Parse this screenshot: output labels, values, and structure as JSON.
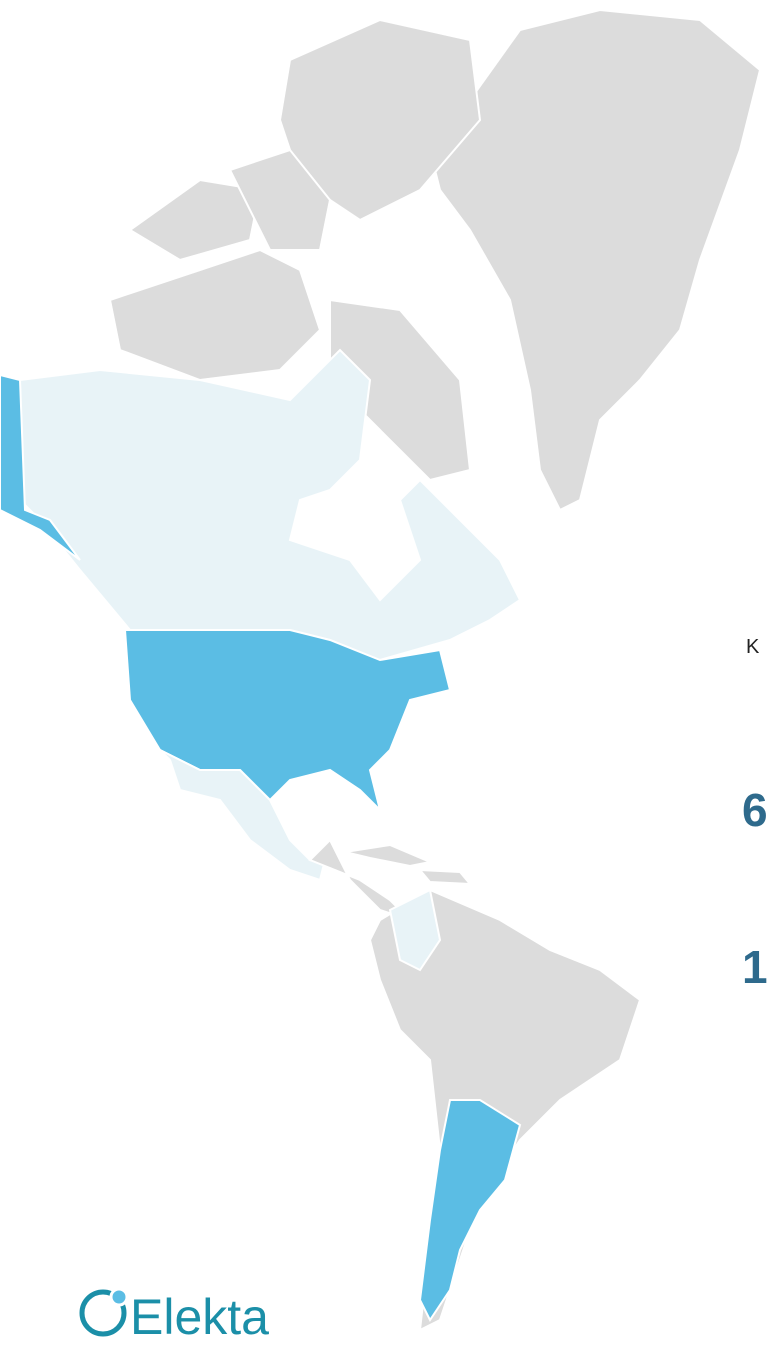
{
  "legend": {
    "key": "K"
  },
  "stats": [
    "6",
    "1"
  ],
  "logo": {
    "text": "Elekta"
  }
}
